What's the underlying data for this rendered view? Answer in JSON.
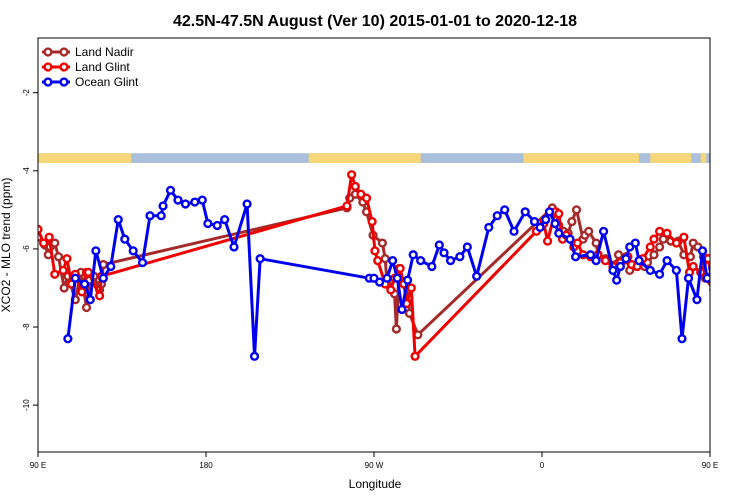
{
  "chart_data": {
    "type": "line",
    "title": "42.5N-47.5N August (Ver 10)   2015-01-01 to 2020-12-18",
    "xlabel": "Longitude",
    "ylabel": "XCO2 - MLO trend (ppm)",
    "xlim": [
      90,
      450
    ],
    "ylim": [
      -11.2,
      -0.6
    ],
    "x_ticks": [
      {
        "value": 90,
        "label": "90 E"
      },
      {
        "value": 180,
        "label": "180"
      },
      {
        "value": 270,
        "label": "90 W"
      },
      {
        "value": 360,
        "label": "0"
      },
      {
        "value": 450,
        "label": "90 E"
      },
      {
        "value": 540,
        "label": "180"
      }
    ],
    "y_ticks": [
      -2,
      -4,
      -6,
      -8,
      -10
    ],
    "legend_position": "top-left",
    "land_mask_band": {
      "y_top": -3.55,
      "y_bottom": -3.8,
      "land_color": "#f5d77a",
      "ocean_color": "#a9bfdc"
    },
    "series": [
      {
        "name": "Land Nadir",
        "color": "#a52a2a",
        "x": [
          90,
          93.75,
          95.5,
          96.5,
          99,
          101,
          104,
          106,
          110,
          113,
          116,
          117.5,
          120,
          123,
          124,
          125,
          255.5,
          257,
          260,
          264,
          266,
          269.5,
          274.5,
          276,
          277,
          281,
          282,
          283.5,
          288.5,
          289,
          293.5,
          365.5,
          367.5,
          369,
          371.5,
          374,
          376,
          378.5,
          382,
          383,
          385,
          389,
          390,
          394,
          399.5,
          401,
          403.5,
          405,
          407,
          415,
          416.5,
          420,
          423,
          425,
          429,
          433,
          436,
          439.5,
          441,
          443.5,
          446.5,
          447.5,
          452,
          455,
          458.5,
          459,
          461,
          466,
          470,
          473
        ],
        "y": [
          -5.7,
          -5.9,
          -6.15,
          -5.95,
          -5.85,
          -6.2,
          -7.0,
          -6.7,
          -7.3,
          -6.6,
          -7.5,
          -6.8,
          -6.7,
          -7.05,
          -6.9,
          -6.4,
          -4.95,
          -4.7,
          -4.6,
          -4.8,
          -5.05,
          -5.65,
          -5.85,
          -6.25,
          -6.9,
          -7.15,
          -8.05,
          -6.5,
          -7.25,
          -7.65,
          -8.2,
          -4.95,
          -5.05,
          -5.4,
          -5.55,
          -5.6,
          -5.3,
          -5.0,
          -5.75,
          -5.65,
          -5.55,
          -5.85,
          -6.15,
          -6.25,
          -6.4,
          -6.15,
          -6.3,
          -6.2,
          -6.55,
          -6.45,
          -6.35,
          -6.15,
          -5.95,
          -5.75,
          -5.8,
          -5.8,
          -6.15,
          -6.2,
          -5.85,
          -5.95,
          -6.2,
          -6.75,
          -7.05,
          -6.3,
          -6.9,
          -6.7,
          -7.45,
          -6.7,
          -6.7,
          -6.45
        ],
        "dashed": false
      },
      {
        "name": "Land Glint",
        "color": "#ee0000",
        "x": [
          90,
          93,
          96,
          99,
          103.5,
          105.5,
          108,
          110,
          113.5,
          116,
          117,
          123,
          124,
          255.5,
          258,
          260,
          263,
          266,
          269,
          270.5,
          272,
          276,
          279,
          281,
          284,
          286,
          287.5,
          290,
          292,
          357,
          359,
          361,
          363,
          367,
          369,
          371,
          373,
          377,
          379,
          382,
          386,
          390,
          394,
          398,
          402,
          406,
          408,
          411,
          414,
          418,
          420,
          423,
          427,
          432,
          436,
          439,
          441,
          445,
          449,
          451,
          453,
          455,
          458,
          461,
          464,
          466.5,
          471
        ],
        "y": [
          -5.5,
          -5.85,
          -5.7,
          -6.65,
          -6.55,
          -6.25,
          -6.9,
          -6.65,
          -7.1,
          -6.6,
          -6.6,
          -7.2,
          -6.7,
          -4.9,
          -4.1,
          -4.4,
          -4.6,
          -4.7,
          -5.3,
          -6.05,
          -6.3,
          -6.9,
          -7.05,
          -6.75,
          -6.5,
          -6.9,
          -7.4,
          -7.0,
          -8.75,
          -5.55,
          -5.35,
          -5.35,
          -5.8,
          -5.05,
          -5.1,
          -5.75,
          -5.65,
          -5.95,
          -5.85,
          -6.15,
          -6.2,
          -6.15,
          -6.3,
          -6.45,
          -6.35,
          -6.2,
          -6.4,
          -6.45,
          -6.25,
          -5.95,
          -5.75,
          -5.55,
          -5.6,
          -5.85,
          -5.7,
          -6.6,
          -6.45,
          -6.6,
          -6.25,
          -6.8,
          -7.15,
          -6.55,
          -7.2,
          -6.8,
          -7.25,
          -7.15,
          -6.45
        ],
        "dashed": false
      },
      {
        "name": "Ocean Glint",
        "color": "#0000ee",
        "x": [
          106,
          110,
          115,
          118,
          121,
          125,
          129,
          133,
          136.5,
          141,
          146,
          150,
          156,
          157,
          161,
          165,
          169,
          174,
          178,
          181,
          186,
          190,
          195,
          202,
          206,
          209,
          267.5,
          270,
          273,
          277,
          280,
          282.5,
          285,
          288,
          291,
          295,
          301,
          305,
          307.5,
          311,
          316,
          320,
          325,
          331.5,
          336,
          340,
          345,
          351,
          356,
          359,
          362,
          364,
          367,
          369,
          375,
          378,
          386,
          389,
          393,
          398,
          400,
          402,
          405,
          407,
          410,
          412,
          418,
          423,
          427,
          432,
          435,
          438.5,
          443,
          446,
          448.5,
          451.5,
          453,
          455,
          459,
          462,
          466,
          469.5,
          475.5,
          480.5,
          484.5,
          490
        ],
        "y": [
          -8.3,
          -6.75,
          -6.9,
          -7.3,
          -6.05,
          -6.75,
          -6.45,
          -5.25,
          -5.75,
          -6.05,
          -6.35,
          -5.15,
          -5.15,
          -4.9,
          -4.5,
          -4.75,
          -4.85,
          -4.8,
          -4.75,
          -5.35,
          -5.4,
          -5.25,
          -5.95,
          -4.85,
          -8.75,
          -6.25,
          -6.75,
          -6.75,
          -6.85,
          -6.75,
          -6.3,
          -6.75,
          -7.55,
          -6.8,
          -6.15,
          -6.3,
          -6.45,
          -5.9,
          -6.1,
          -6.3,
          -6.2,
          -5.95,
          -6.7,
          -5.45,
          -5.15,
          -5.0,
          -5.55,
          -5.05,
          -5.3,
          -5.45,
          -5.25,
          -5.05,
          -5.35,
          -5.6,
          -5.75,
          -6.2,
          -6.15,
          -6.3,
          -5.55,
          -6.55,
          -6.8,
          -6.45,
          -6.25,
          -5.95,
          -5.85,
          -6.3,
          -6.55,
          -6.65,
          -6.3,
          -6.55,
          -8.3,
          -6.75,
          -7.3,
          -6.05,
          -6.75,
          -6.5,
          -5.25,
          -5.75,
          -6.05,
          -6.35,
          -5.15,
          -5.15,
          -4.9,
          -4.5,
          -4.75,
          -4.85
        ],
        "dashed": false
      }
    ]
  }
}
